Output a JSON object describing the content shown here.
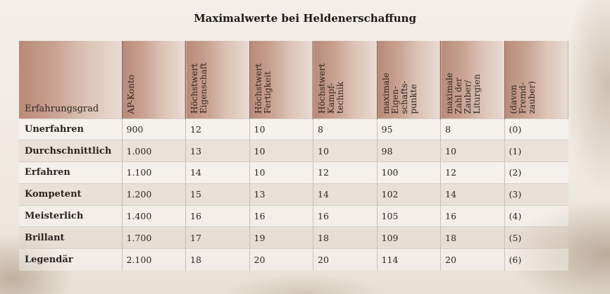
{
  "title": "Maximalwerte bei Heldenerschaffung",
  "headers": [
    "Erfahrungsgrad",
    "AP-Konto",
    "Höchstwert\nEigenschaft",
    "Höchstwert\nFertigkeit",
    "Höchstwert\nKampf-\ntechnik",
    "maximale\nEigen-\nschafts-\npunkte",
    "maximale\nZahl der\nZauber/\nLiturgien",
    "(davon\nFremd-\nzauber)"
  ],
  "rows": [
    [
      "Unerfahren",
      "900",
      "12",
      "10",
      "8",
      "95",
      "8",
      "(0)"
    ],
    [
      "Durchschnittlich",
      "1.000",
      "13",
      "10",
      "10",
      "98",
      "10",
      "(1)"
    ],
    [
      "Erfahren",
      "1.100",
      "14",
      "10",
      "12",
      "100",
      "12",
      "(2)"
    ],
    [
      "Kompetent",
      "1.200",
      "15",
      "13",
      "14",
      "102",
      "14",
      "(3)"
    ],
    [
      "Meisterlich",
      "1.400",
      "16",
      "16",
      "16",
      "105",
      "16",
      "(4)"
    ],
    [
      "Brillant",
      "1.700",
      "17",
      "19",
      "18",
      "109",
      "18",
      "(5)"
    ],
    [
      "Legendär",
      "2.100",
      "18",
      "20",
      "20",
      "114",
      "20",
      "(6)"
    ]
  ]
}
